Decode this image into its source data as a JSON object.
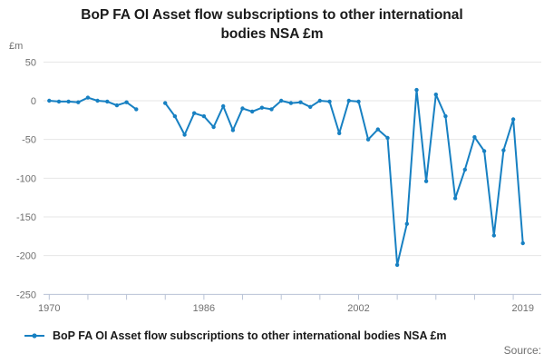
{
  "title": {
    "text": "BoP FA OI Asset flow subscriptions to other international bodies NSA £m"
  },
  "y_axis": {
    "unit": "£m",
    "ticks": [
      50,
      0,
      -50,
      -100,
      -150,
      -200,
      -250
    ]
  },
  "x_axis": {
    "labeled_ticks": [
      1970,
      1986,
      2002,
      2019
    ],
    "tick_interval_years": 4
  },
  "legend": {
    "label": "BoP FA OI Asset flow subscriptions to other international bodies NSA £m"
  },
  "source": {
    "label": "Source:"
  },
  "colors": {
    "line": "#1780c2",
    "grid": "#e6e6e6",
    "axis": "#b9c3d6",
    "text_muted": "#6f6f6f",
    "text_dark": "#1a1a1a"
  },
  "chart_data": {
    "type": "line",
    "title": "BoP FA OI Asset flow subscriptions to other international bodies NSA £m",
    "ylabel": "£m",
    "xlabel": "",
    "ylim": [
      -250,
      50
    ],
    "xlim": [
      1970,
      2019
    ],
    "grid": "horizontal",
    "legend_position": "bottom-left",
    "marker": "dot",
    "x": [
      1970,
      1971,
      1972,
      1973,
      1974,
      1975,
      1976,
      1977,
      1978,
      1979,
      1980,
      1981,
      1982,
      1983,
      1984,
      1985,
      1986,
      1987,
      1988,
      1989,
      1990,
      1991,
      1992,
      1993,
      1994,
      1995,
      1996,
      1997,
      1998,
      1999,
      2000,
      2001,
      2002,
      2003,
      2004,
      2005,
      2006,
      2007,
      2008,
      2009,
      2010,
      2011,
      2012,
      2013,
      2014,
      2015,
      2016,
      2017,
      2018,
      2019
    ],
    "series": [
      {
        "name": "BoP FA OI Asset flow subscriptions to other international bodies NSA £m",
        "values": [
          0,
          -1,
          -1,
          -2,
          4,
          0,
          -1,
          -6,
          -2,
          -11,
          null,
          null,
          -3,
          -20,
          -44,
          -16,
          -20,
          -34,
          -7,
          -38,
          -10,
          -14,
          -9,
          -11,
          0,
          -3,
          -2,
          -8,
          0,
          -1,
          -42,
          0,
          -1,
          -50,
          -37,
          -48,
          -212,
          -159,
          14,
          -104,
          8,
          -20,
          -126,
          -89,
          -47,
          -65,
          -174,
          -64,
          -24,
          -184
        ]
      }
    ],
    "y_ticks": [
      50,
      0,
      -50,
      -100,
      -150,
      -200,
      -250
    ],
    "x_tick_labels": [
      "1970",
      "1986",
      "2002",
      "2019"
    ]
  }
}
